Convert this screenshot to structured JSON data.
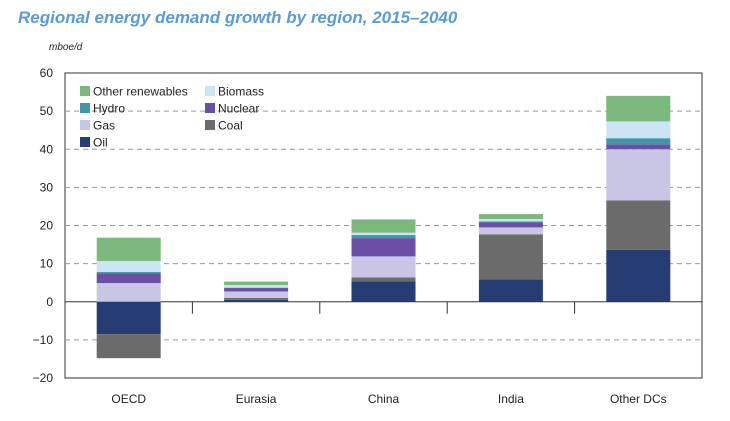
{
  "page": {
    "title": "Regional energy demand growth by region, 2015–2040",
    "unit_label": "mboe/d"
  },
  "chart_data": {
    "type": "bar",
    "stacked": true,
    "title": "Regional energy demand growth by region, 2015–2040",
    "ylabel": "mboe/d",
    "ylim": [
      -20,
      60
    ],
    "yticks": [
      60,
      50,
      40,
      30,
      20,
      10,
      0,
      -10,
      -20
    ],
    "ytick_labels": [
      "60",
      "50",
      "40",
      "30",
      "20",
      "10",
      "0",
      "−10",
      "−20"
    ],
    "grid": "dashed horizontal",
    "legend_position": "top-left",
    "categories": [
      "OECD",
      "Eurasia",
      "China",
      "India",
      "Other DCs"
    ],
    "series": [
      {
        "name": "Oil",
        "color": "#263d73",
        "values": [
          -8.5,
          0.5,
          5.3,
          5.9,
          13.6
        ]
      },
      {
        "name": "Coal",
        "color": "#6b6b6b",
        "values": [
          -6.3,
          0.5,
          1.1,
          11.8,
          13.0
        ]
      },
      {
        "name": "Gas",
        "color": "#c8c6e4",
        "values": [
          4.9,
          1.7,
          5.5,
          1.8,
          13.4
        ]
      },
      {
        "name": "Nuclear",
        "color": "#6a4fa5",
        "values": [
          2.6,
          0.9,
          4.8,
          1.3,
          1.3
        ]
      },
      {
        "name": "Hydro",
        "color": "#3f98a8",
        "values": [
          0.3,
          0.1,
          0.8,
          0.3,
          1.6
        ]
      },
      {
        "name": "Biomass",
        "color": "#cde4f5",
        "values": [
          2.9,
          0.7,
          0.6,
          0.6,
          4.4
        ]
      },
      {
        "name": "Other renewables",
        "color": "#7cb87e",
        "values": [
          6.1,
          0.9,
          3.5,
          1.3,
          6.7
        ]
      }
    ],
    "legend": {
      "items": [
        {
          "name": "Other renewables",
          "color": "#7cb87e"
        },
        {
          "name": "Biomass",
          "color": "#cde4f5"
        },
        {
          "name": "Hydro",
          "color": "#3f98a8"
        },
        {
          "name": "Nuclear",
          "color": "#6a4fa5"
        },
        {
          "name": "Gas",
          "color": "#c8c6e4"
        },
        {
          "name": "Coal",
          "color": "#6b6b6b"
        },
        {
          "name": "Oil",
          "color": "#263d73"
        }
      ]
    }
  }
}
